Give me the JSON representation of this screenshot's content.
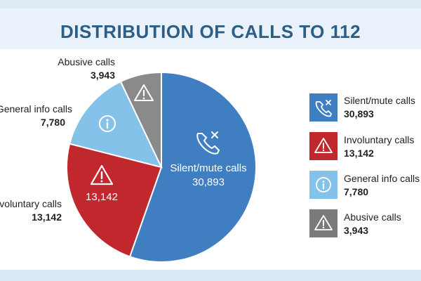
{
  "title": "DISTRIBUTION OF CALLS TO 112",
  "chart_data": {
    "type": "pie",
    "title": "DISTRIBUTION OF CALLS TO 112",
    "slices": [
      {
        "label": "Silent/mute calls",
        "value": 30893,
        "display": "30,893",
        "color": "#3f7fc1",
        "icon": "phone-x-icon"
      },
      {
        "label": "Involuntary calls",
        "value": 13142,
        "display": "13,142",
        "color": "#c0282e",
        "icon": "warning-icon"
      },
      {
        "label": "General info calls",
        "value": 7780,
        "display": "7,780",
        "color": "#85c2ea",
        "icon": "info-icon"
      },
      {
        "label": "Abusive calls",
        "value": 3943,
        "display": "3,943",
        "color": "#8a8a8a",
        "icon": "warning-icon"
      }
    ],
    "legend": "right"
  },
  "callouts": {
    "abusive": {
      "label": "Abusive calls",
      "value": "3,943"
    },
    "general": {
      "label": "General info calls",
      "value": "7,780"
    },
    "involuntary": {
      "label": "Involuntary calls",
      "value": "13,142"
    }
  },
  "inside_labels": {
    "silent_label": "Silent/mute calls",
    "silent_value": "30,893",
    "involuntary_value": "13,142"
  },
  "legend": [
    {
      "label": "Silent/mute calls",
      "value": "30,893",
      "color": "#3f7fc1",
      "icon": "phone-x-icon"
    },
    {
      "label": "Involuntary calls",
      "value": "13,142",
      "color": "#c0282e",
      "icon": "warning-icon"
    },
    {
      "label": "General info calls",
      "value": "7,780",
      "color": "#85c2ea",
      "icon": "info-icon"
    },
    {
      "label": "Abusive calls",
      "value": "3,943",
      "color": "#7a7a7a",
      "icon": "warning-icon"
    }
  ]
}
